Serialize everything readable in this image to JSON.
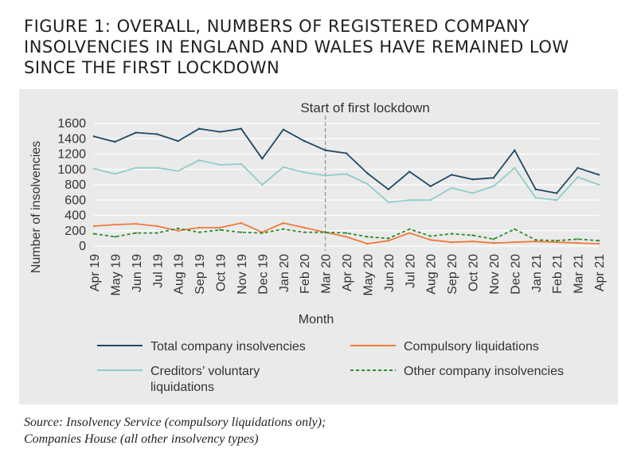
{
  "title": "FIGURE 1: OVERALL, NUMBERS OF REGISTERED COMPANY INSOLVENCIES IN ENGLAND AND WALES HAVE REMAINED LOW SINCE THE FIRST LOCKDOWN",
  "source": {
    "line1": "Source: Insolvency Service (compulsory liquidations only);",
    "line2": "Companies House (all other insolvency types)"
  },
  "chart_data": {
    "type": "line",
    "title": "FIGURE 1: OVERALL, NUMBERS OF REGISTERED COMPANY INSOLVENCIES IN ENGLAND AND WALES HAVE REMAINED LOW SINCE THE FIRST LOCKDOWN",
    "xlabel": "Month",
    "ylabel": "Number of insolvencies",
    "ylim": [
      0,
      1600
    ],
    "yticks": [
      0,
      200,
      400,
      600,
      800,
      1000,
      1200,
      1400,
      1600
    ],
    "grid": true,
    "legend_position": "bottom",
    "annotation": {
      "label": "Start of first lockdown",
      "at_category": "Mar 20"
    },
    "categories": [
      "Apr 19",
      "May 19",
      "Jun 19",
      "Jul 19",
      "Aug 19",
      "Sep 19",
      "Oct 19",
      "Nov 19",
      "Dec 19",
      "Jan 20",
      "Feb 20",
      "Mar 20",
      "Apr 20",
      "May 20",
      "Jun 20",
      "Jul 20",
      "Aug 20",
      "Sep 20",
      "Oct 20",
      "Nov 20",
      "Dec 20",
      "Jan 21",
      "Feb 21",
      "Mar 21",
      "Apr 21"
    ],
    "series": [
      {
        "name": "Total company insolvencies",
        "color": "#1d4a63",
        "dash": "solid",
        "values": [
          1430,
          1360,
          1480,
          1460,
          1370,
          1530,
          1490,
          1530,
          1140,
          1520,
          1370,
          1250,
          1210,
          950,
          740,
          970,
          780,
          930,
          870,
          890,
          1250,
          740,
          690,
          1020,
          930
        ]
      },
      {
        "name": "Creditors’ voluntary liquidations",
        "legend_lines": [
          "Creditors’ voluntary",
          "liquidations"
        ],
        "color": "#8fcdc9",
        "dash": "solid",
        "values": [
          1010,
          940,
          1020,
          1020,
          980,
          1120,
          1060,
          1070,
          800,
          1030,
          960,
          920,
          940,
          810,
          570,
          600,
          600,
          760,
          690,
          780,
          1020,
          630,
          600,
          900,
          800
        ]
      },
      {
        "name": "Compulsory liquidations",
        "color": "#f07a3a",
        "dash": "solid",
        "values": [
          260,
          280,
          290,
          260,
          200,
          240,
          240,
          300,
          180,
          300,
          240,
          180,
          120,
          30,
          70,
          170,
          80,
          50,
          60,
          40,
          50,
          60,
          50,
          40,
          30
        ]
      },
      {
        "name": "Other company insolvencies",
        "color": "#2e8b2e",
        "dash": "dashed",
        "values": [
          160,
          120,
          170,
          170,
          230,
          180,
          210,
          180,
          170,
          220,
          180,
          180,
          170,
          120,
          100,
          220,
          130,
          160,
          140,
          90,
          220,
          80,
          70,
          90,
          70
        ]
      }
    ]
  }
}
